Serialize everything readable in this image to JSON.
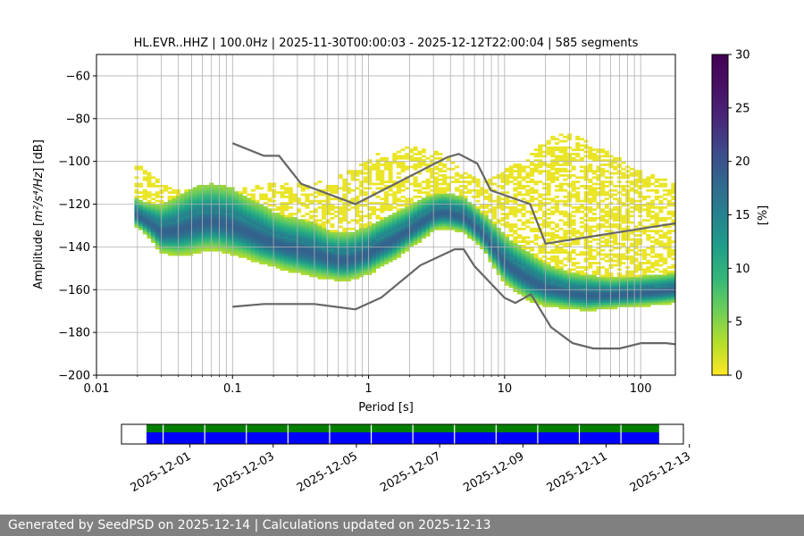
{
  "chart_data": {
    "type": "heatmap",
    "title": "HL.EVR..HHZ | 100.0Hz | 2025-11-30T00:00:03 - 2025-12-12T22:00:04 | 585 segments",
    "xlabel": "Period [s]",
    "ylabel_prefix": "Amplitude [",
    "ylabel_math": "m²/s⁴/Hz",
    "ylabel_suffix": "] [dB]",
    "x_scale": "log",
    "xlim": [
      0.01,
      180
    ],
    "ylim": [
      -200,
      -50
    ],
    "x_ticks": [
      {
        "value": 0.01,
        "label": "0.01"
      },
      {
        "value": 0.1,
        "label": "0.1"
      },
      {
        "value": 1,
        "label": "1"
      },
      {
        "value": 10,
        "label": "10"
      },
      {
        "value": 100,
        "label": "100"
      }
    ],
    "y_ticks": [
      {
        "value": -60,
        "label": "−60"
      },
      {
        "value": -80,
        "label": "−80"
      },
      {
        "value": -100,
        "label": "−100"
      },
      {
        "value": -120,
        "label": "−120"
      },
      {
        "value": -140,
        "label": "−140"
      },
      {
        "value": -160,
        "label": "−160"
      },
      {
        "value": -180,
        "label": "−180"
      },
      {
        "value": -200,
        "label": "−200"
      }
    ],
    "grid": true,
    "colorbar": {
      "label": "[%]",
      "range": [
        0,
        30
      ],
      "ticks": [
        {
          "value": 0,
          "label": "0"
        },
        {
          "value": 5,
          "label": "5"
        },
        {
          "value": 10,
          "label": "10"
        },
        {
          "value": 15,
          "label": "15"
        },
        {
          "value": 20,
          "label": "20"
        },
        {
          "value": 25,
          "label": "25"
        },
        {
          "value": 30,
          "label": "30"
        }
      ]
    },
    "mode_curve": {
      "period": [
        0.019,
        0.022,
        0.025,
        0.03,
        0.04,
        0.05,
        0.06,
        0.07,
        0.08,
        0.1,
        0.13,
        0.16,
        0.2,
        0.25,
        0.3,
        0.4,
        0.5,
        0.6,
        0.7,
        0.8,
        1.0,
        1.2,
        1.5,
        2,
        2.5,
        3,
        3.5,
        4,
        5,
        6,
        7,
        8,
        10,
        12,
        15,
        20,
        30,
        40,
        60,
        80,
        100,
        130,
        180
      ],
      "db": [
        -124,
        -127,
        -129,
        -133,
        -132,
        -130,
        -128.5,
        -128,
        -128.5,
        -130,
        -133,
        -135.5,
        -138,
        -140,
        -141,
        -143,
        -145,
        -146,
        -146,
        -145,
        -143,
        -140,
        -137,
        -132,
        -128,
        -125,
        -124,
        -124.5,
        -126,
        -130,
        -134,
        -139,
        -147,
        -151,
        -155,
        -159,
        -161.5,
        -162.5,
        -162.5,
        -162,
        -161.5,
        -161,
        -160
      ],
      "spread_db": [
        5,
        5,
        6,
        8,
        10,
        11,
        11,
        11,
        11,
        11,
        10,
        10,
        9,
        9,
        9,
        9,
        8,
        8,
        8,
        8,
        8,
        8,
        8,
        7,
        7,
        6,
        6,
        6,
        6,
        6,
        6,
        7,
        8,
        8,
        8,
        7,
        6,
        6,
        5,
        5,
        5,
        5,
        5
      ]
    },
    "upper_tail": {
      "period": [
        0.02,
        0.03,
        0.05,
        0.1,
        0.2,
        0.3,
        0.5,
        0.8,
        1.2,
        2,
        3,
        4,
        5,
        7,
        10,
        15,
        20,
        25,
        30,
        40,
        60,
        100,
        180
      ],
      "db": [
        -101,
        -110,
        -114,
        -113,
        -110,
        -110,
        -109,
        -103,
        -96,
        -93,
        -95,
        -98,
        -104,
        -110,
        -104,
        -95,
        -90,
        -87,
        -87,
        -90,
        -96,
        -104,
        -110
      ]
    },
    "noise_models": [
      {
        "period": [
          0.1,
          0.17,
          0.22,
          0.32,
          0.8,
          3.8,
          4.6,
          6.3,
          7.9,
          15.4,
          20,
          354.8
        ],
        "db": [
          -91.5,
          -97.4,
          -97.4,
          -110.5,
          -120,
          -98,
          -96.5,
          -101,
          -113.5,
          -120,
          -138.5,
          -126
        ]
      },
      {
        "period": [
          0.1,
          0.17,
          0.4,
          0.8,
          1.24,
          2.4,
          4.3,
          5,
          6,
          10,
          12,
          15.6,
          21.9,
          31.6,
          45,
          70,
          101,
          154,
          328
        ],
        "db": [
          -168,
          -166.7,
          -166.7,
          -169.2,
          -163.7,
          -148.6,
          -141.1,
          -141.1,
          -149,
          -163.8,
          -166.2,
          -162.1,
          -177.5,
          -185,
          -187.5,
          -187.5,
          -185,
          -185,
          -187.5
        ]
      }
    ],
    "availability": {
      "date_ticks": [
        "2025-12-01",
        "2025-12-03",
        "2025-12-05",
        "2025-12-07",
        "2025-12-09",
        "2025-12-11",
        "2025-12-13"
      ],
      "xlim_days": [
        "2025-11-30T00:00:03",
        "2025-12-13T12:00:00"
      ],
      "data_range": [
        "2025-11-30T00:00:03",
        "2025-12-12T22:00:04"
      ],
      "data_color": "#0000ff",
      "gap_free_color": "#008000"
    }
  },
  "footer_text": "Generated by SeedPSD on 2025-12-14 | Calculations updated on 2025-12-13"
}
